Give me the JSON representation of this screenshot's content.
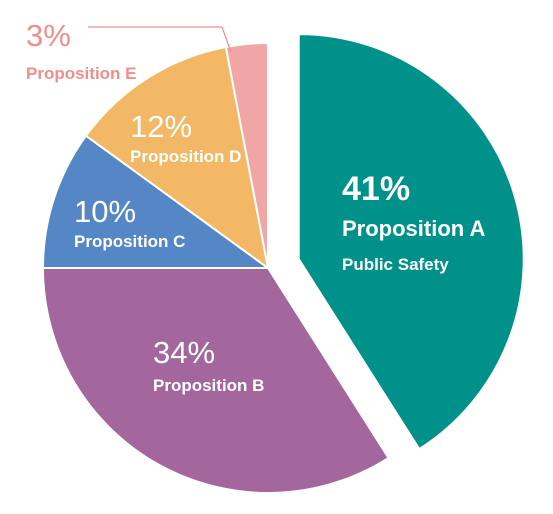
{
  "chart_data": {
    "type": "pie",
    "title": "",
    "slices": [
      {
        "label": "Proposition A",
        "sublabel": "Public Safety",
        "value": 41,
        "display": "41%",
        "color": "#00918a",
        "exploded": true
      },
      {
        "label": "Proposition B",
        "value": 34,
        "display": "34%",
        "color": "#a3669d"
      },
      {
        "label": "Proposition C",
        "value": 10,
        "display": "10%",
        "color": "#5587c6"
      },
      {
        "label": "Proposition D",
        "value": 12,
        "display": "12%",
        "color": "#f2b866"
      },
      {
        "label": "Proposition E",
        "value": 3,
        "display": "3%",
        "color": "#f1a6a6"
      }
    ],
    "label_color_light": "#ffffff",
    "label_color_e": "#f08d8d",
    "leader_color": "#f08d8d"
  }
}
